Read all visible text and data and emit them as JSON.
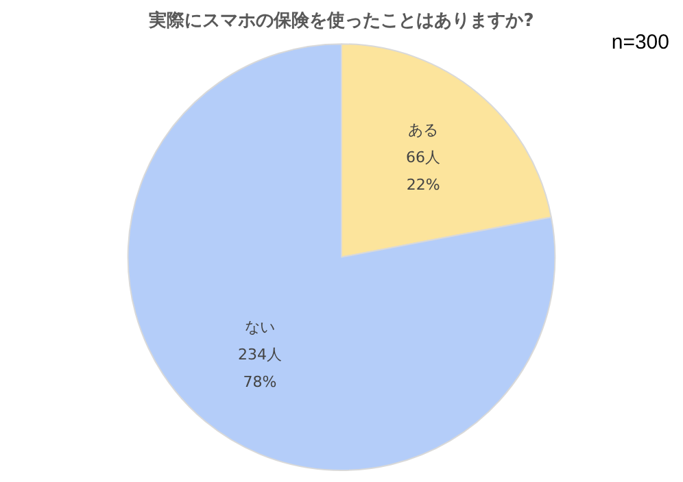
{
  "chart_data": {
    "type": "pie",
    "title": "実際にスマホの保険を使ったことはありますか?",
    "categories": [
      "ある",
      "ない"
    ],
    "values": [
      66,
      234
    ],
    "colors": [
      "#fce49c",
      "#b4cdf9"
    ],
    "value_labels": [
      "66人\n22%",
      "234人\n78%"
    ],
    "annotations": [
      "n=300"
    ],
    "legend": false
  }
}
